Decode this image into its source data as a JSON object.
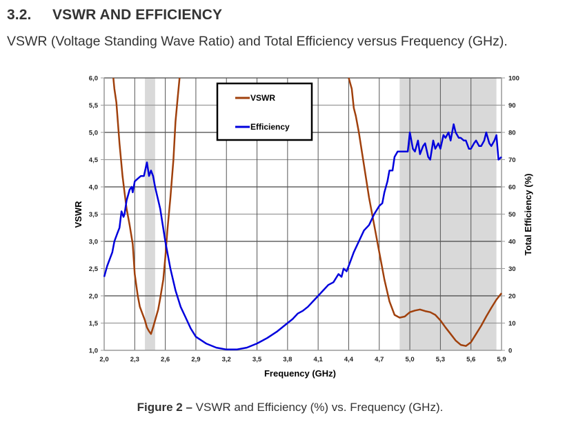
{
  "section": {
    "number": "3.2.",
    "title": "VSWR AND EFFICIENCY",
    "intro": "VSWR (Voltage Standing Wave Ratio) and Total Efficiency versus Frequency (GHz)."
  },
  "caption": {
    "label": "Figure 2 –",
    "text": " VSWR and Efficiency (%) vs. Frequency (GHz)."
  },
  "colors": {
    "vswr": "#a0400c",
    "efficiency": "#0000dd",
    "band": "#d9d9d9",
    "grid": "#555555"
  },
  "chart_data": {
    "type": "line",
    "title": "",
    "xlabel": "Frequency (GHz)",
    "ylabel": "VSWR",
    "y2label": "Total Efficiency (%)",
    "xlim": [
      2.0,
      5.9
    ],
    "ylim": [
      1.0,
      6.0
    ],
    "y2lim": [
      0,
      100
    ],
    "x_ticks": [
      "2,0",
      "2,3",
      "2,6",
      "2,9",
      "3,2",
      "3,5",
      "3,8",
      "4,1",
      "4,4",
      "4,7",
      "5,0",
      "5,3",
      "5,6",
      "5,9"
    ],
    "x_tick_values": [
      2.0,
      2.3,
      2.6,
      2.9,
      3.2,
      3.5,
      3.8,
      4.1,
      4.4,
      4.7,
      5.0,
      5.3,
      5.6,
      5.9
    ],
    "y_ticks": [
      "1,0",
      "1,5",
      "2,0",
      "2,5",
      "3,0",
      "3,5",
      "4,0",
      "4,5",
      "5,0",
      "5,5",
      "6,0"
    ],
    "y_tick_values": [
      1.0,
      1.5,
      2.0,
      2.5,
      3.0,
      3.5,
      4.0,
      4.5,
      5.0,
      5.5,
      6.0
    ],
    "y2_ticks": [
      "0",
      "10",
      "20",
      "30",
      "40",
      "50",
      "60",
      "70",
      "80",
      "90",
      "100"
    ],
    "y2_tick_values": [
      0,
      10,
      20,
      30,
      40,
      50,
      60,
      70,
      80,
      90,
      100
    ],
    "grid": true,
    "legend": {
      "placement": "top-center",
      "entries": [
        "VSWR",
        "Efficiency"
      ]
    },
    "shaded_bands_ghz": [
      [
        2.4,
        2.5
      ],
      [
        4.9,
        5.85
      ]
    ],
    "series": [
      {
        "name": "VSWR",
        "axis": "left",
        "segments": [
          {
            "x": [
              2.09,
              2.1,
              2.12,
              2.15,
              2.18,
              2.2,
              2.22,
              2.25,
              2.28,
              2.3,
              2.33,
              2.35,
              2.38,
              2.4,
              2.42,
              2.44,
              2.46,
              2.48,
              2.5,
              2.53,
              2.55,
              2.58,
              2.6,
              2.62,
              2.65,
              2.68,
              2.7,
              2.72,
              2.74
            ],
            "y": [
              6.0,
              5.8,
              5.55,
              4.8,
              4.2,
              3.9,
              3.6,
              3.3,
              2.95,
              2.4,
              2.0,
              1.8,
              1.65,
              1.55,
              1.42,
              1.35,
              1.3,
              1.42,
              1.55,
              1.75,
              1.95,
              2.3,
              2.7,
              3.2,
              3.8,
              4.5,
              5.2,
              5.6,
              6.0
            ]
          },
          {
            "x": [
              4.4,
              4.43,
              4.45,
              4.47,
              4.5,
              4.55,
              4.6,
              4.65,
              4.7,
              4.75,
              4.8,
              4.85,
              4.9,
              4.95,
              5.0,
              5.05,
              5.1,
              5.15,
              5.2,
              5.25,
              5.3,
              5.35,
              5.4,
              5.45,
              5.5,
              5.55,
              5.6,
              5.65,
              5.7,
              5.75,
              5.8,
              5.85,
              5.9
            ],
            "y": [
              6.0,
              5.8,
              5.45,
              5.3,
              5.0,
              4.4,
              3.8,
              3.3,
              2.8,
              2.3,
              1.9,
              1.65,
              1.6,
              1.62,
              1.7,
              1.73,
              1.75,
              1.72,
              1.7,
              1.65,
              1.55,
              1.42,
              1.3,
              1.18,
              1.1,
              1.08,
              1.15,
              1.3,
              1.45,
              1.62,
              1.78,
              1.93,
              2.05
            ]
          }
        ]
      },
      {
        "name": "Efficiency",
        "axis": "right",
        "x": [
          2.0,
          2.03,
          2.05,
          2.08,
          2.1,
          2.13,
          2.15,
          2.17,
          2.19,
          2.2,
          2.22,
          2.25,
          2.27,
          2.28,
          2.3,
          2.33,
          2.36,
          2.39,
          2.42,
          2.44,
          2.46,
          2.48,
          2.5,
          2.55,
          2.6,
          2.65,
          2.7,
          2.75,
          2.8,
          2.85,
          2.9,
          3.0,
          3.1,
          3.2,
          3.3,
          3.4,
          3.5,
          3.6,
          3.7,
          3.8,
          3.85,
          3.9,
          3.95,
          4.0,
          4.05,
          4.1,
          4.15,
          4.2,
          4.25,
          4.3,
          4.33,
          4.35,
          4.38,
          4.4,
          4.45,
          4.5,
          4.55,
          4.6,
          4.65,
          4.7,
          4.73,
          4.75,
          4.78,
          4.8,
          4.83,
          4.85,
          4.88,
          4.92,
          4.95,
          4.98,
          5.0,
          5.03,
          5.05,
          5.08,
          5.1,
          5.13,
          5.15,
          5.18,
          5.2,
          5.23,
          5.25,
          5.28,
          5.3,
          5.33,
          5.35,
          5.38,
          5.4,
          5.43,
          5.45,
          5.48,
          5.5,
          5.53,
          5.55,
          5.58,
          5.6,
          5.63,
          5.65,
          5.68,
          5.7,
          5.73,
          5.75,
          5.78,
          5.8,
          5.83,
          5.85,
          5.87,
          5.9
        ],
        "y": [
          27,
          31,
          33,
          36,
          40,
          43,
          45,
          51,
          49,
          50,
          55,
          59,
          60,
          58,
          62,
          63,
          64,
          64,
          69,
          64,
          66,
          64,
          60,
          52,
          40,
          30,
          22,
          16,
          12,
          8,
          5,
          2.5,
          1,
          0.3,
          0.3,
          1,
          2.5,
          4.5,
          7,
          10,
          11.5,
          13.5,
          14.5,
          16,
          18,
          20,
          22,
          24,
          25,
          28,
          27,
          30,
          29,
          31,
          36,
          40,
          44,
          46,
          50,
          53,
          54,
          58,
          62,
          66,
          66,
          71,
          73,
          73,
          73,
          73,
          80,
          74,
          73,
          77,
          72,
          75,
          76,
          71,
          70,
          77,
          74,
          76,
          74,
          79,
          78,
          80,
          77,
          83,
          80,
          78,
          78,
          77,
          77,
          74,
          74,
          76,
          77,
          75,
          75,
          77,
          80,
          76,
          75,
          77,
          79,
          70,
          71
        ]
      }
    ]
  }
}
